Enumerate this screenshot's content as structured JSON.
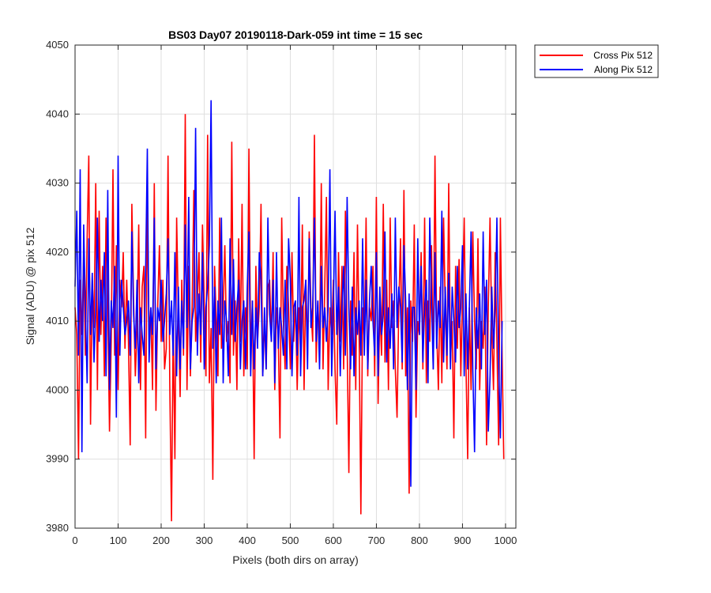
{
  "chart_data": {
    "type": "line",
    "title": "BS03 Day07 20190118-Dark-059 int time = 15 sec",
    "xlabel": "Pixels (both dirs on array)",
    "ylabel": "Signal (ADU) @ pix 512",
    "xlim": [
      0,
      1024
    ],
    "ylim": [
      3980,
      4050
    ],
    "xticks": [
      0,
      100,
      200,
      300,
      400,
      500,
      600,
      700,
      800,
      900,
      1000
    ],
    "yticks": [
      3980,
      3990,
      4000,
      4010,
      4020,
      4030,
      4040,
      4050
    ],
    "grid": true,
    "legend_position": "outside-top-right",
    "series": [
      {
        "name": "Cross Pix 512",
        "color": "#ff0000",
        "x_start": 0,
        "x_step": 4,
        "values": [
          4012,
          4008,
          3990,
          4016,
          4008,
          4020,
          4005,
          4022,
          4034,
          3995,
          4016,
          4009,
          4030,
          4000,
          4026,
          4008,
          4018,
          4002,
          4025,
          4012,
          3994,
          4007,
          4032,
          4005,
          4021,
          4000,
          4016,
          4012,
          4020,
          4006,
          4016,
          4007,
          3992,
          4027,
          4013,
          4002,
          4009,
          4024,
          4000,
          4015,
          4018,
          3993,
          4028,
          4008,
          4012,
          4000,
          4030,
          3997,
          4012,
          4021,
          4007,
          4016,
          4003,
          4006,
          4034,
          4001,
          3981,
          4009,
          3990,
          4025,
          4011,
          3999,
          4016,
          4005,
          4040,
          4000,
          4018,
          4002,
          4012,
          4029,
          4007,
          4013,
          4020,
          4004,
          4024,
          4013,
          4002,
          4037,
          4001,
          4009,
          3987,
          4018,
          4010,
          4002,
          4025,
          4006,
          4012,
          4021,
          4007,
          4010,
          4001,
          4036,
          4005,
          4013,
          4000,
          4022,
          4007,
          4027,
          4002,
          4012,
          4003,
          4035,
          4005,
          4013,
          3990,
          4018,
          4007,
          4012,
          4027,
          4002,
          4010,
          4003,
          4015,
          4016,
          4007,
          4020,
          4000,
          4012,
          4008,
          3993,
          4025,
          4010,
          4003,
          4018,
          4012,
          4003,
          4020,
          4007,
          4013,
          4000,
          4012,
          4006,
          4024,
          4000,
          4016,
          4005,
          4023,
          4012,
          4007,
          4037,
          4004,
          4013,
          4006,
          4030,
          4003,
          4015,
          4028,
          4000,
          4012,
          4008,
          4016,
          4003,
          3995,
          4020,
          4007,
          4018,
          4003,
          4026,
          4007,
          3988,
          4013,
          4005,
          4020,
          4000,
          4024,
          4008,
          3982,
          4012,
          4007,
          4025,
          4002,
          4012,
          4010,
          4018,
          4002,
          4028,
          3998,
          4012,
          4005,
          4027,
          4004,
          4016,
          4000,
          4025,
          4009,
          4013,
          4003,
          3996,
          4012,
          4022,
          4003,
          4029,
          4002,
          4012,
          3985,
          4013,
          4007,
          4024,
          3996,
          4010,
          4008,
          4020,
          4003,
          4025,
          4001,
          4013,
          4007,
          4021,
          4003,
          4034,
          4009,
          4000,
          4015,
          4001,
          4025,
          4012,
          4003,
          4030,
          4004,
          4010,
          3993,
          4018,
          4006,
          4019,
          4002,
          4013,
          4025,
          4004,
          3990,
          4012,
          4000,
          4023,
          4010,
          4003,
          4022,
          4000,
          4010,
          4006,
          4015,
          3992,
          4012,
          4025,
          4008,
          4000,
          4020,
          4007,
          3992,
          4025,
          4005,
          3990
        ]
      },
      {
        "name": "Along Pix 512",
        "color": "#0000ff",
        "x_start": 0,
        "x_step": 4,
        "values": [
          4015,
          4026,
          4005,
          4032,
          3991,
          4024,
          4012,
          4001,
          4022,
          4008,
          4017,
          4004,
          4012,
          4025,
          4007,
          4016,
          4010,
          4020,
          4002,
          4029,
          4000,
          4013,
          4009,
          4018,
          3996,
          4034,
          4005,
          4016,
          4012,
          4008,
          4010,
          4013,
          4005,
          4023,
          4011,
          4006,
          4016,
          4001,
          4012,
          4008,
          4005,
          4018,
          4035,
          4004,
          4012,
          4008,
          4025,
          4003,
          4012,
          4010,
          4016,
          4007,
          4010,
          4014,
          4022,
          4008,
          4013,
          4005,
          4020,
          4002,
          4015,
          4003,
          4013,
          4006,
          4024,
          4009,
          4028,
          4003,
          4010,
          4012,
          4038,
          4005,
          4014,
          4008,
          4020,
          4003,
          4012,
          4015,
          4021,
          4042,
          4006,
          4015,
          4001,
          4013,
          4008,
          4025,
          4001,
          4013,
          4010,
          4002,
          4022,
          4008,
          4019,
          4007,
          4012,
          4016,
          4003,
          4010,
          4013,
          4003,
          4015,
          4023,
          4002,
          4013,
          4003,
          4012,
          4006,
          4020,
          4016,
          4002,
          4012,
          4003,
          4025,
          4011,
          4007,
          4016,
          4001,
          4020,
          4006,
          4012,
          4009,
          4005,
          4016,
          4003,
          4022,
          4016,
          4002,
          4012,
          4013,
          4005,
          4028,
          4002,
          4012,
          4013,
          4016,
          4003,
          4022,
          4009,
          4012,
          4025,
          4007,
          4013,
          4003,
          4018,
          4009,
          4012,
          4007,
          4012,
          4032,
          4002,
          4012,
          4026,
          4008,
          4015,
          4002,
          4012,
          4018,
          4005,
          4028,
          4012,
          4003,
          4015,
          4002,
          4012,
          4008,
          4013,
          4005,
          4022,
          4005,
          4016,
          4003,
          4013,
          4018,
          4010,
          4005,
          4020,
          4002,
          4015,
          4008,
          4011,
          4023,
          4004,
          4012,
          4006,
          4014,
          4003,
          4025,
          4009,
          4015,
          4012,
          4004,
          4021,
          4013,
          4000,
          4014,
          3986,
          4012,
          4012,
          4000,
          4022,
          4008,
          4018,
          4004,
          4012,
          4016,
          4001,
          4025,
          4013,
          4003,
          4020,
          4006,
          4013,
          4009,
          4026,
          4004,
          4015,
          4005,
          4017,
          4003,
          4015,
          4010,
          4004,
          4018,
          4009,
          4012,
          4021,
          4002,
          4014,
          4003,
          4012,
          4023,
          4003,
          3991,
          4012,
          4006,
          4014,
          4003,
          4023,
          4008,
          4016,
          3994,
          4002,
          4015,
          4006,
          4012,
          4025,
          4004,
          3993,
          4010
        ]
      }
    ]
  }
}
